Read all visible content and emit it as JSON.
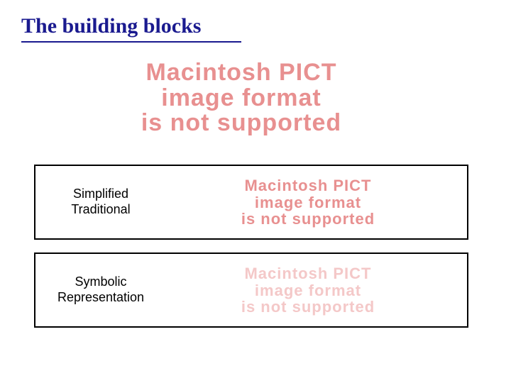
{
  "slide": {
    "title": "The building blocks",
    "title_color": "#1a1a8f",
    "title_underline_color": "#1a1a8f",
    "title_fontsize": 30,
    "background_color": "#ffffff"
  },
  "top_placeholder": {
    "line1": "Macintosh PICT",
    "line2": "image format",
    "line3": "is not supported",
    "color": "#e89090",
    "fontsize": 34,
    "font_weight": 900
  },
  "boxes": [
    {
      "label_line1": "Simplified",
      "label_line2": "Traditional",
      "label_fontsize": 18,
      "label_color": "#000000",
      "border_color": "#000000",
      "placeholder": {
        "line1": "Macintosh PICT",
        "line2": "image format",
        "line3": "is not supported",
        "color": "#e89090",
        "fontsize": 22
      }
    },
    {
      "label_line1": "Symbolic",
      "label_line2": "Representation",
      "label_fontsize": 18,
      "label_color": "#000000",
      "border_color": "#000000",
      "placeholder": {
        "line1": "Macintosh PICT",
        "line2": "image format",
        "line3": "is not supported",
        "color": "#f4c8c8",
        "fontsize": 22
      }
    }
  ]
}
